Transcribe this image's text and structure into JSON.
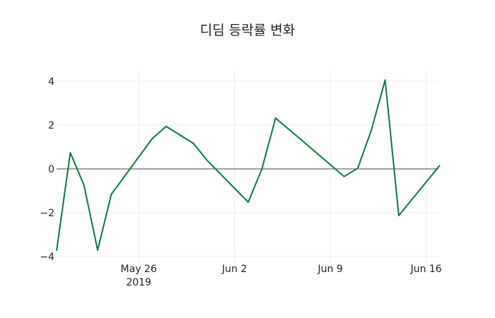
{
  "title": "디딤 등락률 변화",
  "colors": {
    "line": "#0b7a3e",
    "zero": "#444444",
    "grid": "#eeeeee"
  },
  "chart_data": {
    "type": "line",
    "title": "디딤 등락률 변화",
    "xlabel": "",
    "ylabel": "",
    "ylim": [
      -4.4,
      4.5
    ],
    "yticks": [
      -4,
      -2,
      0,
      2,
      4
    ],
    "ytick_labels": [
      "−4",
      "−2",
      "0",
      "2",
      "4"
    ],
    "xticks": [
      "May 26\n2019",
      "Jun 2",
      "Jun 9",
      "Jun 16"
    ],
    "grid": true,
    "legend": null,
    "x": [
      "2019-05-20",
      "2019-05-21",
      "2019-05-22",
      "2019-05-23",
      "2019-05-24",
      "2019-05-27",
      "2019-05-28",
      "2019-05-29",
      "2019-05-30",
      "2019-05-31",
      "2019-06-03",
      "2019-06-04",
      "2019-06-05",
      "2019-06-07",
      "2019-06-10",
      "2019-06-11",
      "2019-06-12",
      "2019-06-13",
      "2019-06-14",
      "2019-06-17"
    ],
    "series": [
      {
        "name": "등락률",
        "values": [
          -3.74,
          0.74,
          -0.74,
          -3.71,
          -1.16,
          1.39,
          1.94,
          1.55,
          1.16,
          0.39,
          -1.52,
          0.0,
          2.32,
          1.26,
          -0.35,
          0.03,
          1.77,
          4.06,
          -2.13,
          0.16
        ]
      }
    ]
  }
}
